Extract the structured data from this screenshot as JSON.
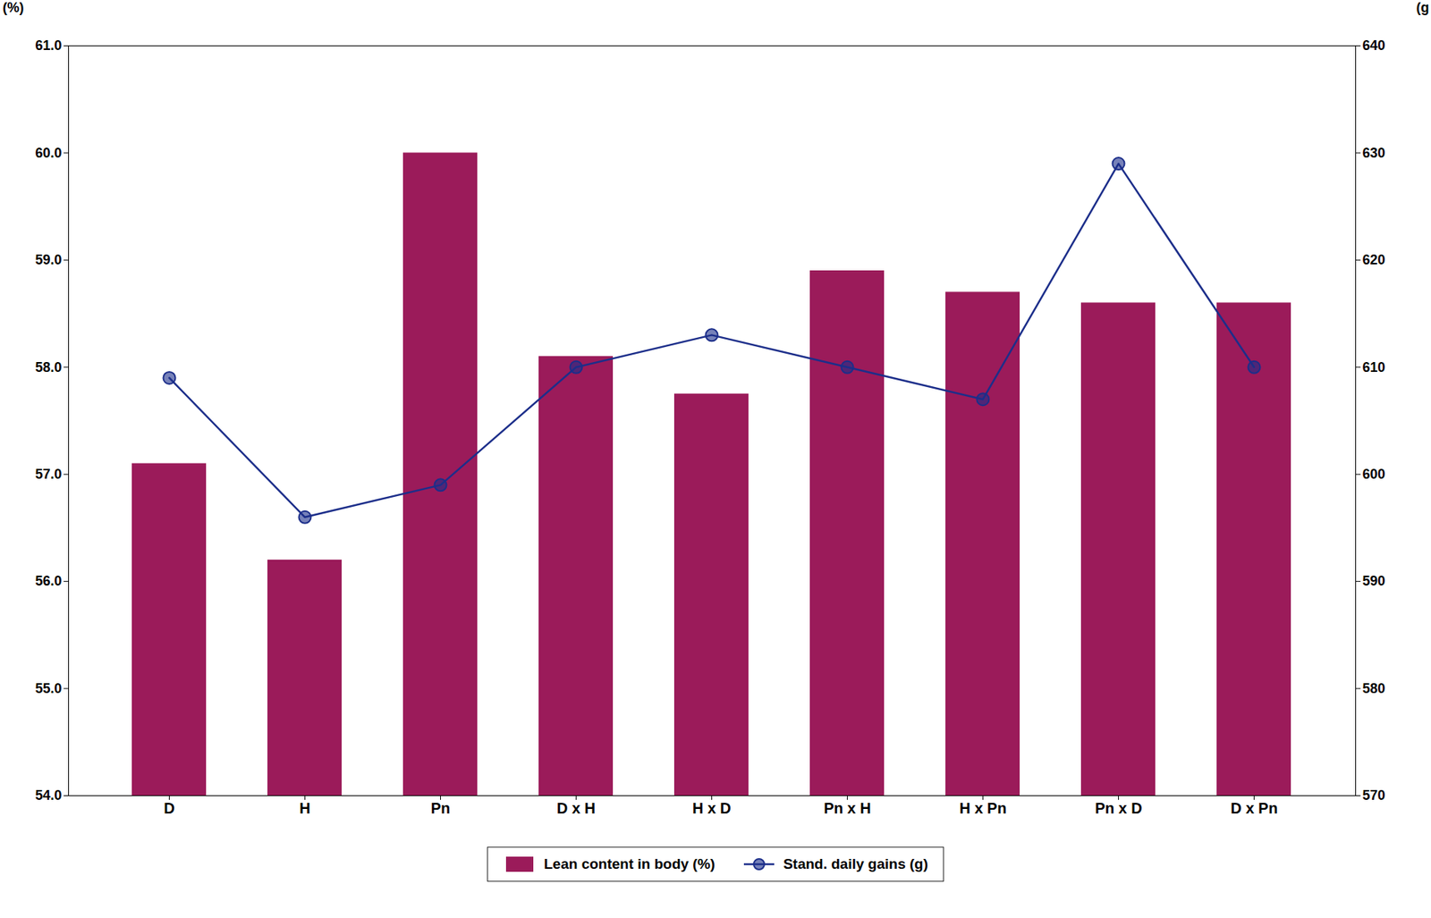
{
  "chart_data": {
    "type": "bar",
    "categories": [
      "D",
      "H",
      "Pn",
      "D x H",
      "H x D",
      "Pn x H",
      "H x Pn",
      "Pn x D",
      "D x Pn"
    ],
    "series": [
      {
        "name": "Lean content in body (%)",
        "type": "bar",
        "color": "#9B1B5A",
        "values": [
          57.1,
          56.2,
          60.0,
          58.1,
          57.75,
          58.9,
          58.7,
          58.6,
          58.6
        ]
      },
      {
        "name": "Stand. daily gains (g)",
        "type": "line",
        "axis": "y2",
        "color": "#1C2E8A",
        "marker": "circle",
        "values": [
          609,
          596,
          599,
          610,
          613,
          610,
          607,
          629,
          610
        ]
      }
    ],
    "ylabel": "(%)",
    "y2label": "(g",
    "ylim": [
      54,
      61
    ],
    "yticks": [
      54,
      55,
      56,
      57,
      58,
      59,
      60,
      61
    ],
    "y2lim": [
      570,
      640
    ],
    "y2ticks": [
      570,
      580,
      590,
      600,
      610,
      620,
      630,
      640
    ],
    "grid": false,
    "legend": "bottom"
  }
}
